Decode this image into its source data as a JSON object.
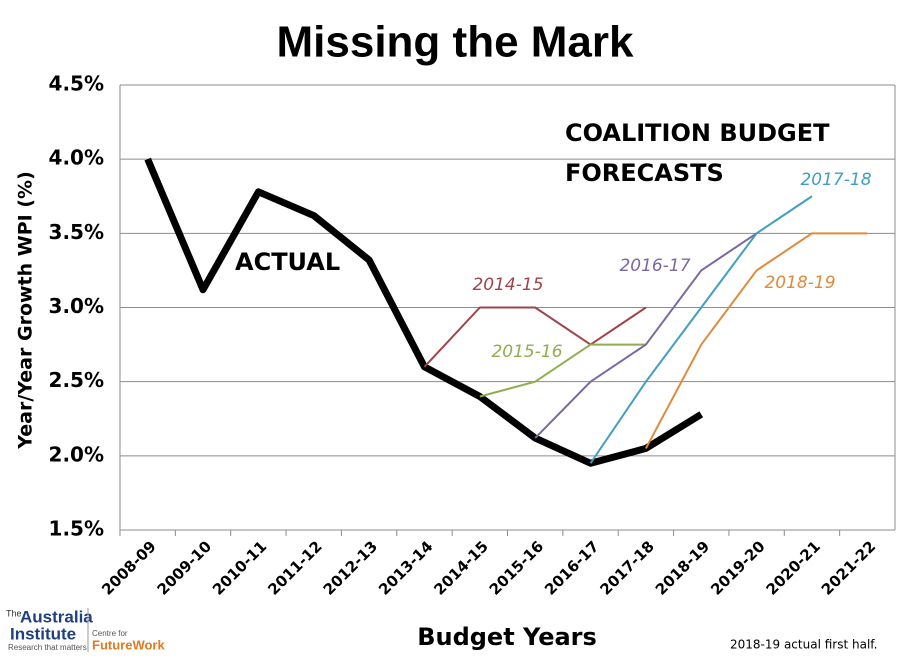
{
  "chart_data": {
    "type": "line",
    "title": "Missing the Mark",
    "x_label": "Budget Years",
    "y_label": "Year/Year Growth WPI (%)",
    "annotation": "COALITION BUDGET FORECASTS",
    "footnote": "2018-19  actual first half.",
    "categories": [
      "2008-09",
      "2009-10",
      "2010-11",
      "2011-12",
      "2012-13",
      "2013-14",
      "2014-15",
      "2015-16",
      "2016-17",
      "2017-18",
      "2018-19",
      "2019-20",
      "2020-21",
      "2021-22"
    ],
    "ylim": [
      1.5,
      4.5
    ],
    "yticks": [
      {
        "value": 1.5,
        "label": "1.5%"
      },
      {
        "value": 2.0,
        "label": "2.0%"
      },
      {
        "value": 2.5,
        "label": "2.5%"
      },
      {
        "value": 3.0,
        "label": "3.0%"
      },
      {
        "value": 3.5,
        "label": "3.5%"
      },
      {
        "value": 4.0,
        "label": "4.0%"
      },
      {
        "value": 4.5,
        "label": "4.5%"
      }
    ],
    "grid": true,
    "series": [
      {
        "name": "ACTUAL",
        "color": "#000000",
        "values": [
          4.0,
          3.12,
          3.78,
          3.62,
          3.32,
          2.6,
          2.4,
          2.12,
          1.95,
          2.05,
          2.28,
          null,
          null,
          null
        ]
      },
      {
        "name": "2014-15",
        "color": "#a0434a",
        "values": [
          null,
          null,
          null,
          null,
          null,
          2.6,
          3.0,
          3.0,
          2.75,
          3.0,
          null,
          null,
          null,
          null
        ]
      },
      {
        "name": "2015-16",
        "color": "#8faf4f",
        "values": [
          null,
          null,
          null,
          null,
          null,
          null,
          2.4,
          2.5,
          2.75,
          2.75,
          null,
          null,
          null,
          null
        ]
      },
      {
        "name": "2016-17",
        "color": "#7b68a0",
        "values": [
          null,
          null,
          null,
          null,
          null,
          null,
          null,
          2.12,
          2.5,
          2.75,
          3.25,
          3.5,
          null,
          null
        ]
      },
      {
        "name": "2017-18",
        "color": "#3f9fbf",
        "values": [
          null,
          null,
          null,
          null,
          null,
          null,
          null,
          null,
          1.95,
          2.5,
          3.0,
          3.5,
          3.75,
          null
        ]
      },
      {
        "name": "2018-19",
        "color": "#e08a3c",
        "values": [
          null,
          null,
          null,
          null,
          null,
          null,
          null,
          null,
          null,
          2.05,
          2.75,
          3.25,
          3.5,
          3.5
        ]
      }
    ]
  },
  "logo": {
    "name": "Australia",
    "name2": "Institute",
    "prefix": "The",
    "tagline": "Research that matters",
    "partner": "Centre for",
    "partner_name": "FutureWork"
  }
}
